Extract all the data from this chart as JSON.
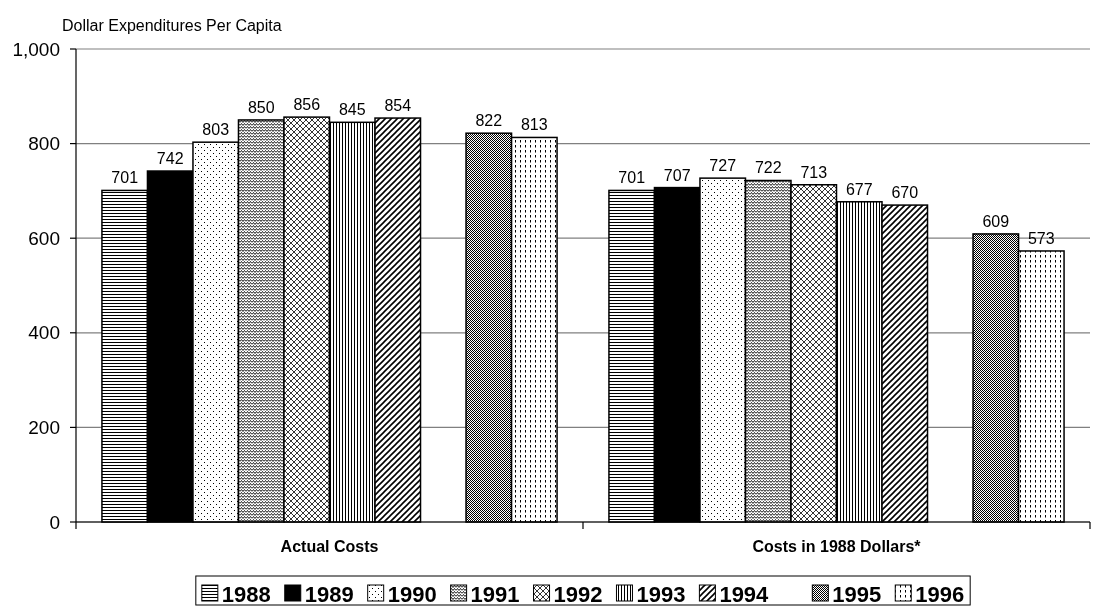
{
  "chart_data": {
    "type": "bar",
    "ylabel": "Dollar Expenditures Per Capita",
    "categories": [
      "Actual Costs",
      "Costs in 1988 Dollars*"
    ],
    "series": [
      {
        "name": "1988",
        "color": "#000000",
        "values": [
          701,
          701
        ]
      },
      {
        "name": "1989",
        "color": "#000000",
        "values": [
          742,
          707
        ]
      },
      {
        "name": "1990",
        "color": "#000000",
        "values": [
          803,
          727
        ]
      },
      {
        "name": "1991",
        "color": "#000000",
        "values": [
          850,
          722
        ]
      },
      {
        "name": "1992",
        "color": "#000000",
        "values": [
          856,
          713
        ]
      },
      {
        "name": "1993",
        "color": "#000000",
        "values": [
          845,
          677
        ]
      },
      {
        "name": "1994",
        "color": "#000000",
        "values": [
          854,
          670
        ]
      },
      {
        "values": [
          null,
          null
        ]
      },
      {
        "name": "1995",
        "color": "#000000",
        "values": [
          822,
          609
        ]
      },
      {
        "name": "1996",
        "color": "#000000",
        "values": [
          813,
          573
        ]
      }
    ],
    "ylim": [
      0,
      1000
    ],
    "yticks": [
      0,
      200,
      400,
      600,
      800,
      {
        "value": 1000,
        "label": "1,000"
      }
    ],
    "grid": "y",
    "legend": "bottom",
    "data_labels": true
  }
}
